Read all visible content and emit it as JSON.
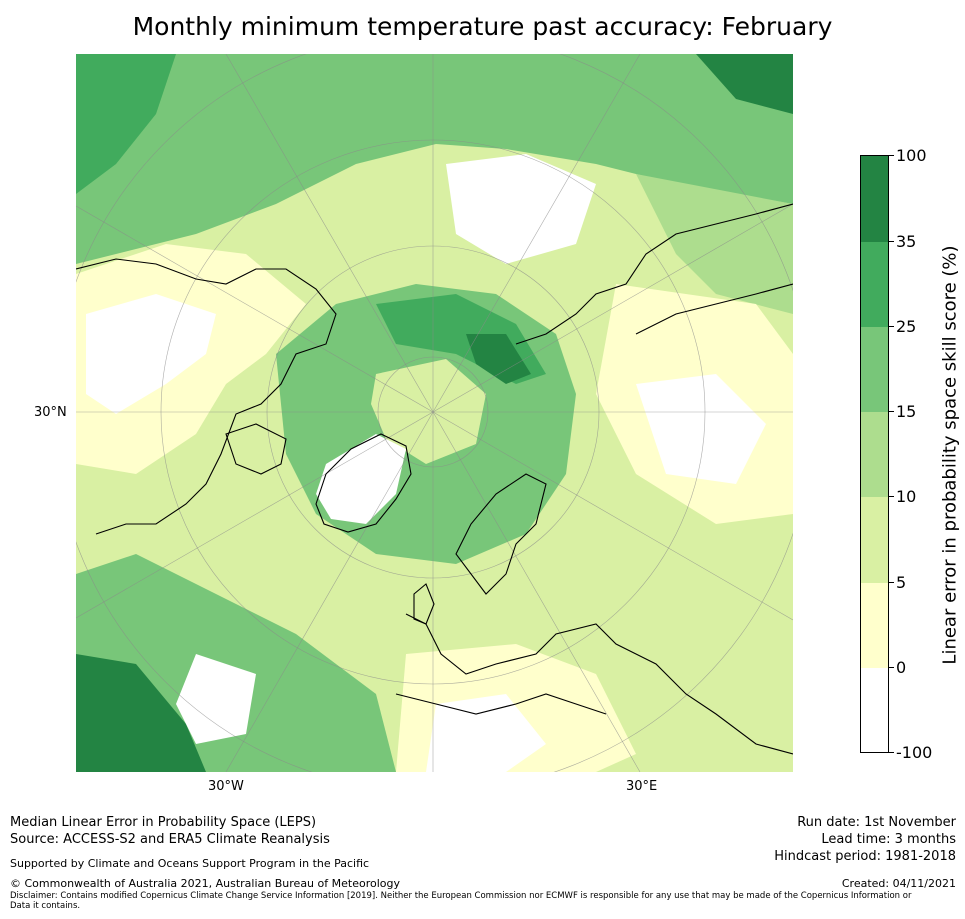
{
  "title": "Monthly minimum temperature past accuracy: February",
  "map": {
    "projection": "north polar stereographic",
    "lat_label": "30°N",
    "lon_labels": [
      "30°W",
      "30°E"
    ]
  },
  "colorbar": {
    "label": "Linear error in probability space skill score (%)",
    "ticks": [
      "100",
      "35",
      "25",
      "15",
      "10",
      "5",
      "0",
      "-100"
    ],
    "colors": [
      "#238443",
      "#41ab5d",
      "#78c679",
      "#addd8e",
      "#d9f0a3",
      "#ffffcc",
      "#ffffff"
    ]
  },
  "footer": {
    "left_lines": [
      "Median Linear Error in Probability Space (LEPS)",
      "Source: ACCESS-S2 and ERA5 Climate Reanalysis"
    ],
    "right_lines": [
      "Run date: 1st November",
      "Lead time: 3 months",
      "Hindcast period: 1981-2018"
    ],
    "support": "Supported by Climate and Oceans Support Program in the Pacific",
    "copyright": "© Commonwealth of Australia 2021, Australian Bureau of Meteorology",
    "created": "Created: 04/11/2021",
    "disclaimer": "Disclaimer: Contains modified Copernicus Climate Change Service Information [2019]. Neither the European Commission nor ECMWF is responsible for any use that may be made of the Copernicus Information or Data it contains."
  }
}
